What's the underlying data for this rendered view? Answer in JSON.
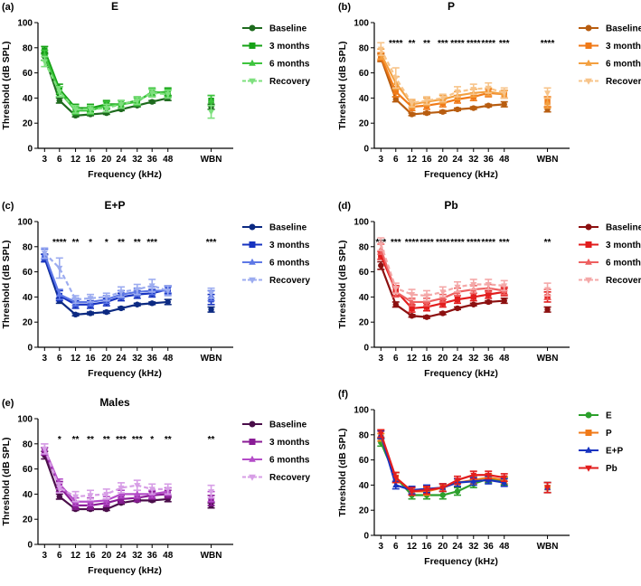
{
  "figure": {
    "x_ticks": [
      "3",
      "6",
      "12",
      "16",
      "20",
      "24",
      "32",
      "36",
      "48",
      "WBN"
    ],
    "xlabel": "Frequency (kHz)",
    "ylabel": "Threshold (dB SPL)",
    "y_ticks": [
      "0",
      "20",
      "40",
      "60",
      "80",
      "100"
    ],
    "ylim": [
      0,
      100
    ]
  },
  "chart_data": [
    {
      "type": "line",
      "panel_label": "(a)",
      "title": "E",
      "categories": [
        "3",
        "6",
        "12",
        "16",
        "20",
        "24",
        "32",
        "36",
        "48",
        "WBN"
      ],
      "ylim": [
        0,
        100
      ],
      "xlabel": "Frequency (kHz)",
      "ylabel": "Threshold (dB SPL)",
      "significance": [
        "",
        "",
        "",
        "",
        "",
        "",
        "",
        "",
        "",
        ""
      ],
      "series": [
        {
          "name": "Baseline",
          "color": "#1e6b1e",
          "marker": "circle",
          "dashed": false,
          "values": [
            73,
            38,
            26,
            27,
            28,
            31,
            34,
            37,
            40,
            33
          ],
          "errors": [
            3,
            2,
            1,
            1,
            1,
            1,
            1,
            1,
            2,
            2
          ]
        },
        {
          "name": "3 months",
          "color": "#16a216",
          "marker": "square",
          "dashed": false,
          "values": [
            78,
            47,
            32,
            32,
            35,
            35,
            38,
            44,
            45,
            38
          ],
          "errors": [
            3,
            4,
            3,
            3,
            3,
            3,
            3,
            3,
            3,
            4
          ]
        },
        {
          "name": "6 months",
          "color": "#3dc43d",
          "marker": "triangle",
          "dashed": false,
          "values": [
            74,
            45,
            30,
            30,
            34,
            35,
            37,
            45,
            44,
            38
          ],
          "errors": [
            4,
            4,
            3,
            3,
            3,
            3,
            3,
            3,
            3,
            4
          ]
        },
        {
          "name": "Recovery",
          "color": "#7ee07e",
          "marker": "triangle-down",
          "dashed": true,
          "values": [
            69,
            45,
            31,
            31,
            32,
            35,
            38,
            44,
            43,
            29
          ],
          "errors": [
            4,
            4,
            3,
            3,
            3,
            3,
            3,
            3,
            3,
            5
          ]
        }
      ]
    },
    {
      "type": "line",
      "panel_label": "(b)",
      "title": "P",
      "categories": [
        "3",
        "6",
        "12",
        "16",
        "20",
        "24",
        "32",
        "36",
        "48",
        "WBN"
      ],
      "ylim": [
        0,
        100
      ],
      "xlabel": "Frequency (kHz)",
      "ylabel": "Threshold (dB SPL)",
      "significance": [
        "",
        "****",
        "**",
        "**",
        "***",
        "****",
        "****",
        "****",
        "***",
        "****"
      ],
      "series": [
        {
          "name": "Baseline",
          "color": "#b85d10",
          "marker": "circle",
          "dashed": false,
          "values": [
            72,
            39,
            27,
            28,
            29,
            31,
            32,
            34,
            35,
            31
          ],
          "errors": [
            3,
            2,
            1,
            1,
            1,
            1,
            1,
            1,
            2,
            2
          ]
        },
        {
          "name": "3 months",
          "color": "#f07a18",
          "marker": "square",
          "dashed": false,
          "values": [
            73,
            45,
            33,
            34,
            36,
            39,
            41,
            44,
            43,
            37
          ],
          "errors": [
            3,
            4,
            3,
            3,
            3,
            3,
            3,
            3,
            3,
            4
          ]
        },
        {
          "name": "6 months",
          "color": "#f3a040",
          "marker": "triangle",
          "dashed": false,
          "values": [
            75,
            52,
            35,
            37,
            39,
            42,
            44,
            45,
            43,
            36
          ],
          "errors": [
            4,
            5,
            3,
            3,
            3,
            3,
            3,
            3,
            3,
            4
          ]
        },
        {
          "name": "Recovery",
          "color": "#f7c48a",
          "marker": "triangle-down",
          "dashed": true,
          "values": [
            79,
            56,
            36,
            38,
            40,
            45,
            47,
            48,
            44,
            44
          ],
          "errors": [
            5,
            8,
            3,
            3,
            3,
            4,
            4,
            4,
            4,
            4
          ]
        }
      ]
    },
    {
      "type": "line",
      "panel_label": "(c)",
      "title": "E+P",
      "categories": [
        "3",
        "6",
        "12",
        "16",
        "20",
        "24",
        "32",
        "36",
        "48",
        "WBN"
      ],
      "ylim": [
        0,
        100
      ],
      "xlabel": "Frequency (kHz)",
      "ylabel": "Threshold (dB SPL)",
      "significance": [
        "",
        "****",
        "**",
        "*",
        "*",
        "**",
        "**",
        "***",
        "",
        "***"
      ],
      "series": [
        {
          "name": "Baseline",
          "color": "#0c2a82",
          "marker": "circle",
          "dashed": false,
          "values": [
            71,
            37,
            26,
            27,
            28,
            31,
            34,
            35,
            36,
            30
          ],
          "errors": [
            3,
            2,
            1,
            1,
            1,
            1,
            1,
            1,
            2,
            2
          ]
        },
        {
          "name": "3 months",
          "color": "#1733c0",
          "marker": "square",
          "dashed": false,
          "values": [
            71,
            41,
            34,
            34,
            36,
            40,
            42,
            43,
            46,
            38
          ],
          "errors": [
            3,
            4,
            3,
            3,
            3,
            3,
            3,
            3,
            3,
            4
          ]
        },
        {
          "name": "6 months",
          "color": "#5e78e6",
          "marker": "triangle",
          "dashed": false,
          "values": [
            74,
            42,
            36,
            36,
            38,
            42,
            44,
            45,
            45,
            41
          ],
          "errors": [
            4,
            4,
            3,
            3,
            3,
            3,
            3,
            3,
            3,
            4
          ]
        },
        {
          "name": "Recovery",
          "color": "#9cacf0",
          "marker": "triangle-down",
          "dashed": true,
          "values": [
            75,
            63,
            38,
            39,
            40,
            44,
            46,
            49,
            45,
            43
          ],
          "errors": [
            4,
            8,
            3,
            3,
            3,
            4,
            4,
            5,
            4,
            4
          ]
        }
      ]
    },
    {
      "type": "line",
      "panel_label": "(d)",
      "title": "Pb",
      "categories": [
        "3",
        "6",
        "12",
        "16",
        "20",
        "24",
        "32",
        "36",
        "48",
        "WBN"
      ],
      "ylim": [
        0,
        100
      ],
      "xlabel": "Frequency (kHz)",
      "ylabel": "Threshold (dB SPL)",
      "significance": [
        "***",
        "***",
        "****",
        "****",
        "****",
        "****",
        "****",
        "****",
        "***",
        "**"
      ],
      "series": [
        {
          "name": "Baseline",
          "color": "#8c1010",
          "marker": "circle",
          "dashed": false,
          "values": [
            65,
            34,
            25,
            24,
            27,
            31,
            34,
            36,
            37,
            30
          ],
          "errors": [
            3,
            2,
            1,
            1,
            1,
            1,
            1,
            1,
            2,
            2
          ]
        },
        {
          "name": "3 months",
          "color": "#e21d1d",
          "marker": "square",
          "dashed": false,
          "values": [
            73,
            45,
            31,
            32,
            35,
            38,
            40,
            42,
            44,
            40
          ],
          "errors": [
            3,
            4,
            3,
            3,
            3,
            3,
            3,
            3,
            3,
            4
          ]
        },
        {
          "name": "6 months",
          "color": "#ee6060",
          "marker": "triangle",
          "dashed": false,
          "values": [
            78,
            44,
            36,
            36,
            39,
            44,
            46,
            47,
            45,
            42
          ],
          "errors": [
            4,
            4,
            3,
            3,
            3,
            3,
            3,
            3,
            3,
            4
          ]
        },
        {
          "name": "Recovery",
          "color": "#f4a8a8",
          "marker": "triangle-down",
          "dashed": true,
          "values": [
            82,
            47,
            42,
            41,
            44,
            48,
            50,
            50,
            49,
            46
          ],
          "errors": [
            5,
            4,
            4,
            4,
            4,
            4,
            4,
            4,
            4,
            5
          ]
        }
      ]
    },
    {
      "type": "line",
      "panel_label": "(e)",
      "title": "Males",
      "categories": [
        "3",
        "6",
        "12",
        "16",
        "20",
        "24",
        "32",
        "36",
        "48",
        "WBN"
      ],
      "ylim": [
        0,
        100
      ],
      "xlabel": "Frequency (kHz)",
      "ylabel": "Threshold (dB SPL)",
      "significance": [
        "",
        "*",
        "**",
        "**",
        "**",
        "***",
        "***",
        "*",
        "**",
        "**"
      ],
      "series": [
        {
          "name": "Baseline",
          "color": "#4a0e4a",
          "marker": "circle",
          "dashed": false,
          "values": [
            71,
            38,
            28,
            28,
            28,
            33,
            35,
            35,
            36,
            31
          ],
          "errors": [
            3,
            2,
            1,
            1,
            1,
            1,
            1,
            1,
            2,
            2
          ]
        },
        {
          "name": "3 months",
          "color": "#8a1c96",
          "marker": "square",
          "dashed": false,
          "values": [
            74,
            46,
            31,
            31,
            33,
            36,
            37,
            39,
            40,
            35
          ],
          "errors": [
            3,
            4,
            3,
            3,
            3,
            3,
            3,
            3,
            3,
            4
          ]
        },
        {
          "name": "6 months",
          "color": "#b44cc8",
          "marker": "triangle",
          "dashed": false,
          "values": [
            76,
            48,
            34,
            34,
            35,
            40,
            40,
            40,
            42,
            38
          ],
          "errors": [
            4,
            4,
            3,
            3,
            3,
            3,
            3,
            3,
            3,
            4
          ]
        },
        {
          "name": "Recovery",
          "color": "#d79ee6",
          "marker": "triangle-down",
          "dashed": true,
          "values": [
            76,
            45,
            38,
            39,
            40,
            45,
            47,
            44,
            44,
            42
          ],
          "errors": [
            4,
            4,
            4,
            4,
            4,
            4,
            4,
            4,
            4,
            5
          ]
        }
      ]
    },
    {
      "type": "line",
      "panel_label": "(f)",
      "title": "",
      "categories": [
        "3",
        "6",
        "12",
        "16",
        "20",
        "24",
        "32",
        "36",
        "48",
        "WBN"
      ],
      "ylim": [
        0,
        100
      ],
      "xlabel": "Frequency (kHz)",
      "ylabel": "Threshold (dB SPL)",
      "significance": [
        "",
        "",
        "",
        "",
        "",
        "",
        "",
        "",
        "",
        ""
      ],
      "series": [
        {
          "name": "E",
          "color": "#2ca02c",
          "marker": "circle",
          "dashed": false,
          "values": [
            74,
            46,
            32,
            32,
            32,
            35,
            41,
            45,
            43,
            38
          ],
          "errors": [
            3,
            4,
            3,
            3,
            3,
            3,
            3,
            3,
            3,
            4
          ]
        },
        {
          "name": "P",
          "color": "#f07a18",
          "marker": "square",
          "dashed": false,
          "values": [
            78,
            46,
            35,
            35,
            38,
            42,
            44,
            46,
            44,
            38
          ],
          "errors": [
            3,
            4,
            3,
            3,
            3,
            3,
            3,
            3,
            3,
            4
          ]
        },
        {
          "name": "E+P",
          "color": "#1733c0",
          "marker": "triangle",
          "dashed": false,
          "values": [
            80,
            40,
            36,
            37,
            38,
            42,
            43,
            44,
            42,
            38
          ],
          "errors": [
            3,
            3,
            3,
            3,
            3,
            3,
            3,
            3,
            3,
            4
          ]
        },
        {
          "name": "Pb",
          "color": "#e21d1d",
          "marker": "triangle-down",
          "dashed": false,
          "values": [
            81,
            46,
            35,
            36,
            38,
            44,
            48,
            48,
            46,
            38
          ],
          "errors": [
            3,
            4,
            3,
            3,
            3,
            3,
            3,
            3,
            3,
            4
          ]
        }
      ]
    }
  ]
}
